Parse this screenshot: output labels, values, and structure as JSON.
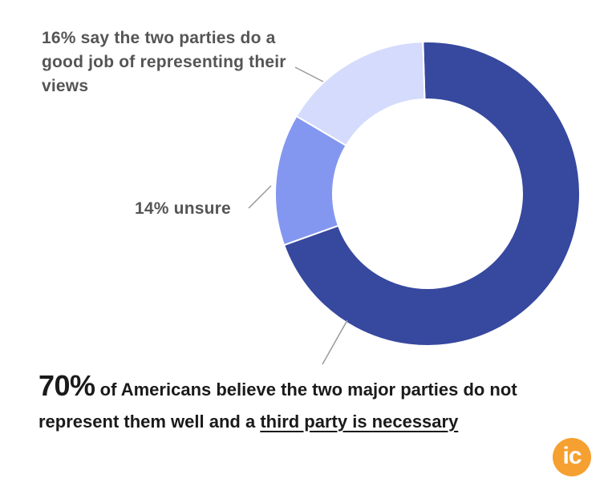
{
  "chart_data": {
    "type": "pie",
    "variant": "donut",
    "slices": [
      {
        "label": "third party is necessary",
        "value": 70,
        "color": "#37489f"
      },
      {
        "label": "unsure",
        "value": 14,
        "color": "#8497f0"
      },
      {
        "label": "two parties do a good job",
        "value": 16,
        "color": "#d4dbfc"
      }
    ],
    "annotations": {
      "good": "16% say the two parties do a good job of representing their views",
      "unsure": "14% unsure"
    }
  },
  "headline": {
    "big": "70%",
    "text": " of Americans believe the two major parties do not represent them well and a ",
    "underlined": "third party is necessary"
  },
  "logo": {
    "text": "ic",
    "color": "#f5a031"
  }
}
